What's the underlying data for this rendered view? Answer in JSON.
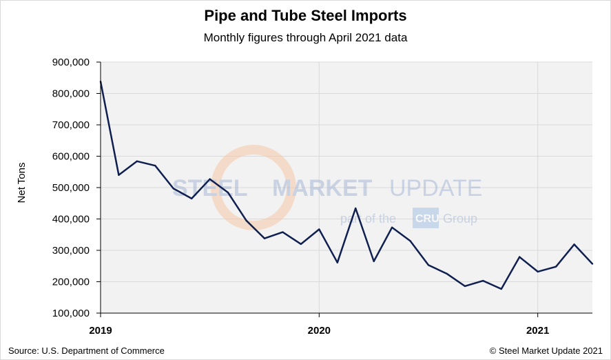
{
  "chart_data": {
    "type": "line",
    "title": "Pipe and Tube Steel Imports",
    "subtitle": "Monthly figures through April 2021 data",
    "ylabel": "Net Tons",
    "xlabel": "",
    "ylim": [
      100000,
      900000
    ],
    "y_ticks": [
      100000,
      200000,
      300000,
      400000,
      500000,
      600000,
      700000,
      800000,
      900000
    ],
    "y_tick_labels": [
      "100,000",
      "200,000",
      "300,000",
      "400,000",
      "500,000",
      "600,000",
      "700,000",
      "800,000",
      "900,000"
    ],
    "x_year_labels": [
      {
        "label": "2019",
        "month_index": 0
      },
      {
        "label": "2020",
        "month_index": 12
      },
      {
        "label": "2021",
        "month_index": 24
      }
    ],
    "grid": true,
    "series": [
      {
        "name": "Pipe and Tube Steel Imports",
        "color": "#0f1f4f",
        "x": [
          "2019-01",
          "2019-02",
          "2019-03",
          "2019-04",
          "2019-05",
          "2019-06",
          "2019-07",
          "2019-08",
          "2019-09",
          "2019-10",
          "2019-11",
          "2019-12",
          "2020-01",
          "2020-02",
          "2020-03",
          "2020-04",
          "2020-05",
          "2020-06",
          "2020-07",
          "2020-08",
          "2020-09",
          "2020-10",
          "2020-11",
          "2020-12",
          "2021-01",
          "2021-02",
          "2021-03",
          "2021-04"
        ],
        "values": [
          838000,
          540000,
          584000,
          570000,
          497000,
          465000,
          527000,
          484000,
          395000,
          338000,
          358000,
          320000,
          367000,
          261000,
          434000,
          265000,
          373000,
          330000,
          253000,
          226000,
          186000,
          203000,
          177000,
          279000,
          232000,
          248000,
          319000,
          257000
        ]
      }
    ]
  },
  "watermark": {
    "brand_steel": "STEEL",
    "brand_market": "MARKET",
    "brand_update": "UPDATE",
    "tagline_prefix": "part of the",
    "tagline_logo": "CRU",
    "tagline_suffix": "Group"
  },
  "footer": {
    "source": "Source: U.S. Department of Commerce",
    "copyright": "© Steel Market Update 2021"
  },
  "colors": {
    "plot_background": "#f2f2f2",
    "grid": "#d9d9d9",
    "line": "#0f1f4f"
  }
}
